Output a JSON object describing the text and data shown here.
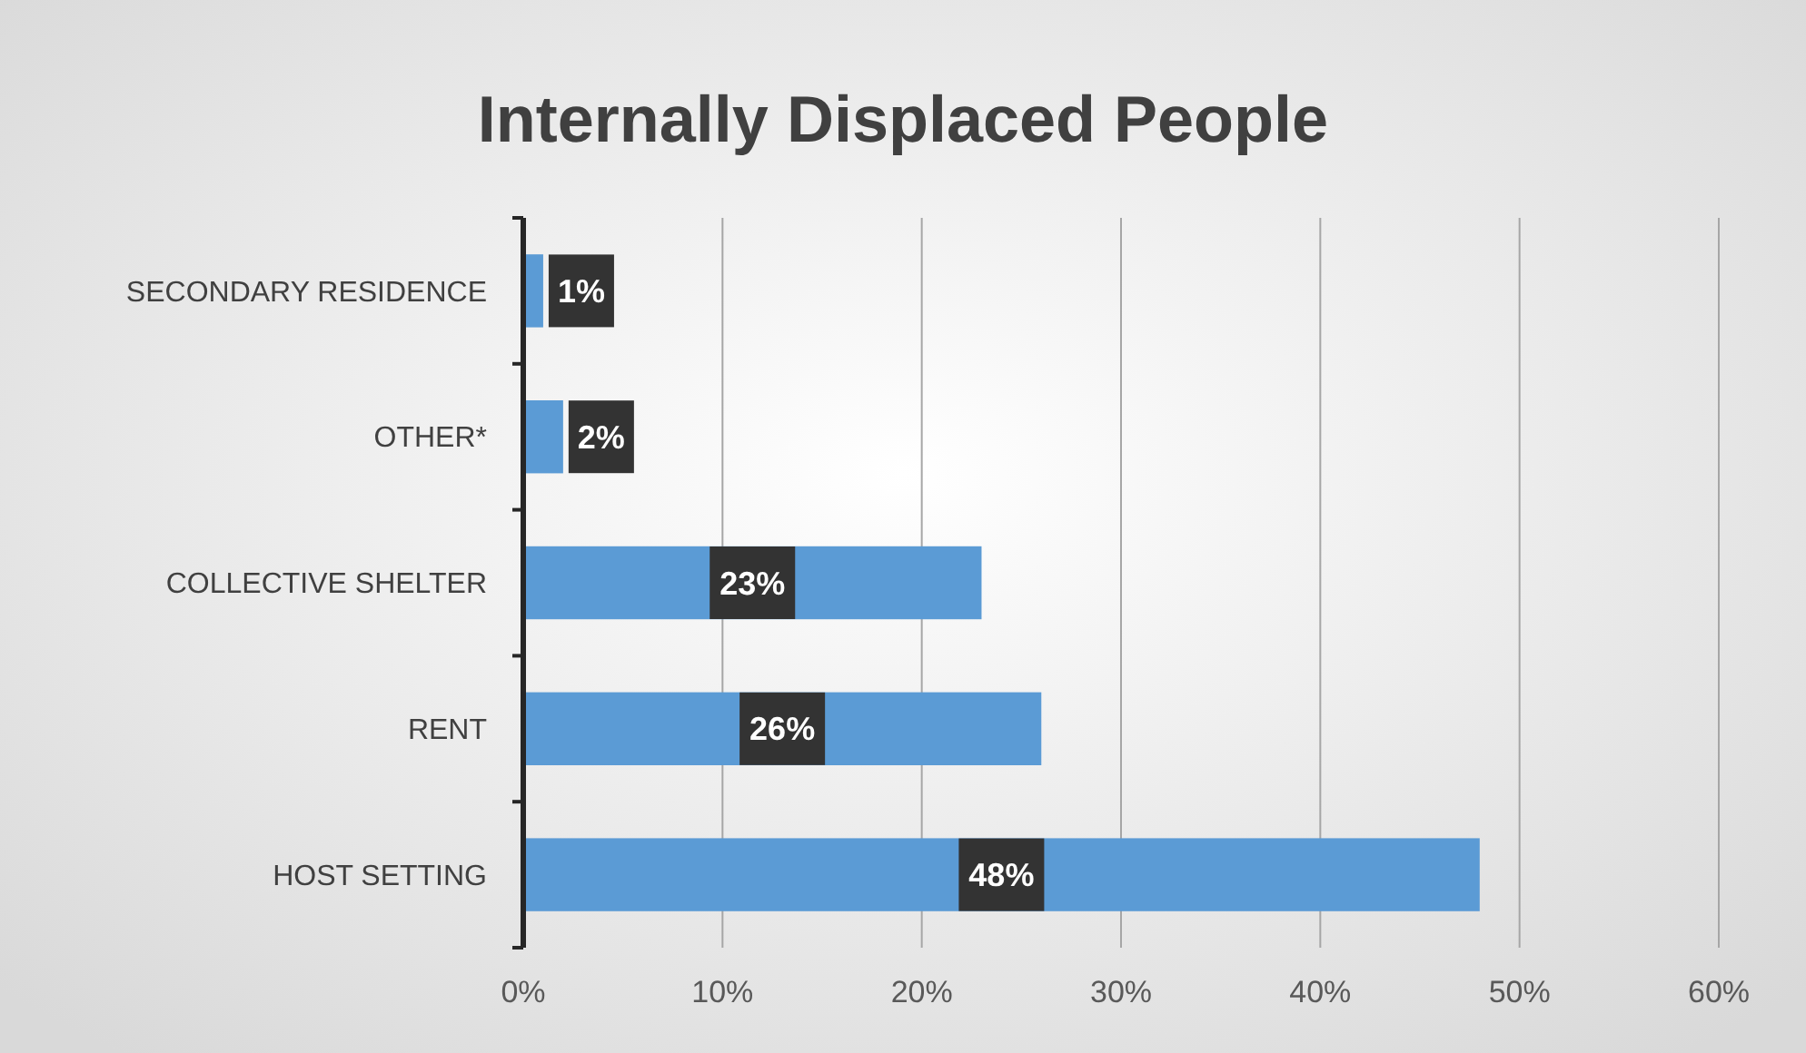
{
  "chart_data": {
    "type": "bar",
    "orientation": "horizontal",
    "title": "Internally Displaced People",
    "categories": [
      "SECONDARY RESIDENCE",
      "OTHER*",
      "COLLECTIVE SHELTER",
      "RENT",
      "HOST SETTING"
    ],
    "values": [
      1,
      2,
      23,
      26,
      48
    ],
    "value_labels": [
      "1%",
      "2%",
      "23%",
      "26%",
      "48%"
    ],
    "color": "#5b9bd5",
    "xlim": [
      0,
      60
    ],
    "xticks": [
      {
        "value": 0,
        "label": "0%"
      },
      {
        "value": 10,
        "label": "10%"
      },
      {
        "value": 20,
        "label": "20%"
      },
      {
        "value": 30,
        "label": "30%"
      },
      {
        "value": 40,
        "label": "40%"
      },
      {
        "value": 50,
        "label": "50%"
      },
      {
        "value": 60,
        "label": "60%"
      }
    ],
    "grid": "x"
  }
}
